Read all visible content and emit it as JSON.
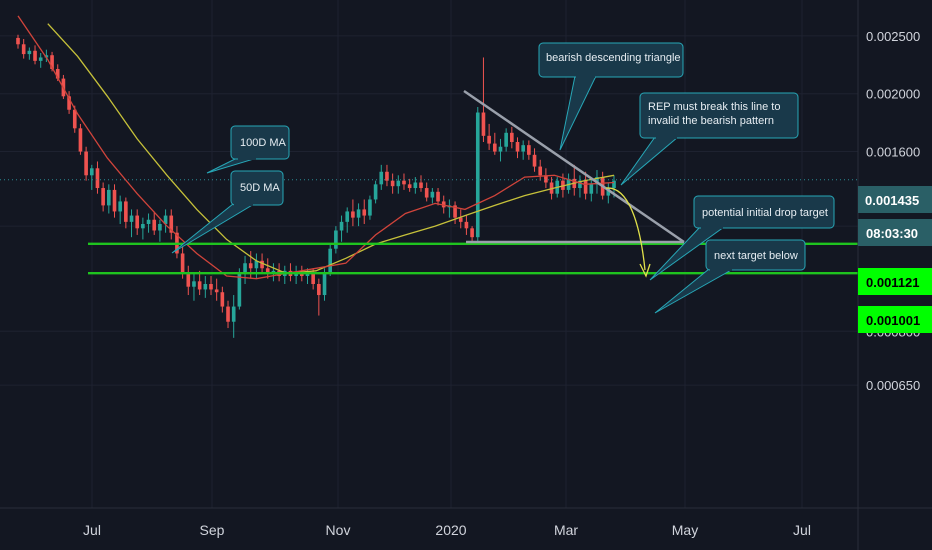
{
  "chart_data": {
    "type": "candlestick",
    "colors": {
      "background": "#131722",
      "grid": "#1e2230",
      "up": "#26a69a",
      "down": "#ef5350",
      "ma100": "#c6c13a",
      "ma50": "#d0443b",
      "level": "#1fc41f",
      "trendline": "#9aa0ab",
      "callout_fill": "#19394a",
      "callout_stroke": "#27a7b7",
      "projection": "#e0e04a",
      "current_badge": "#2a5f66"
    },
    "y_axis": {
      "ticks": [
        "0.002500",
        "0.002000",
        "0.001600",
        "0.001200",
        "0.000800",
        "0.000650"
      ],
      "range": [
        0.0006,
        0.0026
      ],
      "scale": "log"
    },
    "x_axis": {
      "ticks": [
        "Jul",
        "Sep",
        "Nov",
        "2020",
        "Mar",
        "May",
        "Jul"
      ]
    },
    "current_price": "0.001435",
    "countdown": "08:03:30",
    "levels": [
      {
        "value": 0.001121,
        "label": "0.001121"
      },
      {
        "value": 0.001001,
        "label": "0.001001"
      }
    ],
    "candles": [
      [
        0.00248,
        0.00251,
        0.00238,
        0.00242
      ],
      [
        0.00242,
        0.00247,
        0.00229,
        0.00233
      ],
      [
        0.00233,
        0.00239,
        0.00228,
        0.00236
      ],
      [
        0.00236,
        0.00241,
        0.00224,
        0.00227
      ],
      [
        0.00227,
        0.00234,
        0.00221,
        0.0023
      ],
      [
        0.0023,
        0.00237,
        0.00226,
        0.00232
      ],
      [
        0.00232,
        0.00235,
        0.00218,
        0.0022
      ],
      [
        0.0022,
        0.00224,
        0.0021,
        0.00212
      ],
      [
        0.00212,
        0.00215,
        0.00196,
        0.00198
      ],
      [
        0.00198,
        0.00202,
        0.00185,
        0.00188
      ],
      [
        0.00188,
        0.00191,
        0.00172,
        0.00175
      ],
      [
        0.00175,
        0.00178,
        0.00158,
        0.0016
      ],
      [
        0.0016,
        0.00163,
        0.00143,
        0.00146
      ],
      [
        0.00146,
        0.00152,
        0.00138,
        0.0015
      ],
      [
        0.0015,
        0.00154,
        0.00136,
        0.00139
      ],
      [
        0.00139,
        0.00142,
        0.00127,
        0.0013
      ],
      [
        0.0013,
        0.00141,
        0.00126,
        0.00138
      ],
      [
        0.00138,
        0.00141,
        0.00124,
        0.00127
      ],
      [
        0.00127,
        0.00135,
        0.00121,
        0.00132
      ],
      [
        0.00132,
        0.00134,
        0.00119,
        0.00122
      ],
      [
        0.00122,
        0.00128,
        0.00115,
        0.00125
      ],
      [
        0.00125,
        0.00128,
        0.00116,
        0.00119
      ],
      [
        0.00119,
        0.00124,
        0.00114,
        0.00121
      ],
      [
        0.00121,
        0.00126,
        0.00117,
        0.00123
      ],
      [
        0.00123,
        0.00127,
        0.00116,
        0.00118
      ],
      [
        0.00118,
        0.00123,
        0.00113,
        0.00121
      ],
      [
        0.00121,
        0.00128,
        0.00117,
        0.00125
      ],
      [
        0.00125,
        0.00128,
        0.00114,
        0.00117
      ],
      [
        0.00117,
        0.0012,
        0.00106,
        0.00108
      ],
      [
        0.00108,
        0.00112,
        0.00098,
        0.001
      ],
      [
        0.001,
        0.00103,
        0.00092,
        0.00095
      ],
      [
        0.00095,
        0.001,
        0.0009,
        0.00097
      ],
      [
        0.00097,
        0.00101,
        0.00092,
        0.00094
      ],
      [
        0.00094,
        0.00099,
        0.00091,
        0.00096
      ],
      [
        0.00096,
        0.00099,
        0.00092,
        0.00094
      ],
      [
        0.00094,
        0.00098,
        0.0009,
        0.00093
      ],
      [
        0.00093,
        0.00095,
        0.00086,
        0.00088
      ],
      [
        0.00088,
        0.0009,
        0.00081,
        0.00083
      ],
      [
        0.00083,
        0.00092,
        0.00078,
        0.00088
      ],
      [
        0.00088,
        0.00102,
        0.00087,
        0.001
      ],
      [
        0.001,
        0.00107,
        0.00096,
        0.00104
      ],
      [
        0.00104,
        0.00109,
        0.00098,
        0.00102
      ],
      [
        0.00102,
        0.00108,
        0.00098,
        0.00105
      ],
      [
        0.00105,
        0.00108,
        0.001,
        0.00102
      ],
      [
        0.00102,
        0.00106,
        0.00098,
        0.001
      ],
      [
        0.001,
        0.00104,
        0.00097,
        0.00101
      ],
      [
        0.00101,
        0.00104,
        0.00097,
        0.00099
      ],
      [
        0.00099,
        0.00103,
        0.00096,
        0.00101
      ],
      [
        0.00101,
        0.00104,
        0.00097,
        0.00099
      ],
      [
        0.00099,
        0.00103,
        0.00096,
        0.001
      ],
      [
        0.001,
        0.00103,
        0.00097,
        0.00099
      ],
      [
        0.00099,
        0.00102,
        0.00096,
        0.001
      ],
      [
        0.001,
        0.00102,
        0.00094,
        0.00096
      ],
      [
        0.00096,
        0.00098,
        0.00085,
        0.00092
      ],
      [
        0.00092,
        0.00102,
        0.0009,
        0.001
      ],
      [
        0.001,
        0.00112,
        0.00099,
        0.0011
      ],
      [
        0.0011,
        0.0012,
        0.00108,
        0.00118
      ],
      [
        0.00118,
        0.00125,
        0.00113,
        0.00122
      ],
      [
        0.00122,
        0.00129,
        0.00117,
        0.00127
      ],
      [
        0.00127,
        0.00133,
        0.0012,
        0.00124
      ],
      [
        0.00124,
        0.00131,
        0.0012,
        0.00128
      ],
      [
        0.00128,
        0.00133,
        0.00121,
        0.00125
      ],
      [
        0.00125,
        0.00135,
        0.00123,
        0.00133
      ],
      [
        0.00133,
        0.00143,
        0.00131,
        0.00141
      ],
      [
        0.00141,
        0.00152,
        0.00138,
        0.00148
      ],
      [
        0.00148,
        0.00152,
        0.0014,
        0.00143
      ],
      [
        0.00143,
        0.00147,
        0.00136,
        0.0014
      ],
      [
        0.0014,
        0.00146,
        0.00136,
        0.00143
      ],
      [
        0.00143,
        0.00147,
        0.00138,
        0.00141
      ],
      [
        0.00141,
        0.00144,
        0.00137,
        0.00139
      ],
      [
        0.00139,
        0.00145,
        0.00136,
        0.00142
      ],
      [
        0.00142,
        0.00146,
        0.00137,
        0.00139
      ],
      [
        0.00139,
        0.00142,
        0.00132,
        0.00134
      ],
      [
        0.00134,
        0.00139,
        0.00131,
        0.00137
      ],
      [
        0.00137,
        0.00139,
        0.0013,
        0.00132
      ],
      [
        0.00132,
        0.00135,
        0.00126,
        0.00129
      ],
      [
        0.00129,
        0.00133,
        0.00124,
        0.0013
      ],
      [
        0.0013,
        0.00132,
        0.00121,
        0.00124
      ],
      [
        0.00124,
        0.00128,
        0.00119,
        0.00122
      ],
      [
        0.00122,
        0.00125,
        0.00116,
        0.00119
      ],
      [
        0.00119,
        0.0012,
        0.00112,
        0.00115
      ],
      [
        0.00115,
        0.0019,
        0.00113,
        0.00186
      ],
      [
        0.00186,
        0.0023,
        0.00166,
        0.0017
      ],
      [
        0.0017,
        0.00178,
        0.00161,
        0.00165
      ],
      [
        0.00165,
        0.00172,
        0.00158,
        0.0016
      ],
      [
        0.0016,
        0.00168,
        0.00154,
        0.00163
      ],
      [
        0.00163,
        0.00175,
        0.0016,
        0.00172
      ],
      [
        0.00172,
        0.00176,
        0.00162,
        0.00166
      ],
      [
        0.00166,
        0.00169,
        0.00156,
        0.0016
      ],
      [
        0.0016,
        0.00167,
        0.00155,
        0.00164
      ],
      [
        0.00164,
        0.00167,
        0.00155,
        0.00158
      ],
      [
        0.00158,
        0.00162,
        0.00148,
        0.00151
      ],
      [
        0.00151,
        0.00155,
        0.00143,
        0.00146
      ],
      [
        0.00146,
        0.0015,
        0.00139,
        0.00142
      ],
      [
        0.00142,
        0.00145,
        0.00133,
        0.00136
      ],
      [
        0.00136,
        0.00145,
        0.00134,
        0.00143
      ],
      [
        0.00143,
        0.00147,
        0.00134,
        0.00138
      ],
      [
        0.00138,
        0.00147,
        0.00136,
        0.00144
      ],
      [
        0.00144,
        0.00152,
        0.00135,
        0.00139
      ],
      [
        0.00139,
        0.00146,
        0.00134,
        0.00143
      ],
      [
        0.00143,
        0.00148,
        0.00133,
        0.00136
      ],
      [
        0.00136,
        0.00144,
        0.00132,
        0.00141
      ],
      [
        0.00141,
        0.00149,
        0.00136,
        0.00145
      ],
      [
        0.00145,
        0.00148,
        0.00133,
        0.00135
      ],
      [
        0.00135,
        0.00142,
        0.00131,
        0.00139
      ],
      [
        0.00139,
        0.00146,
        0.00134,
        0.00143
      ]
    ],
    "ma100": [
      [
        0.05,
        0.00262
      ],
      [
        0.1,
        0.00231
      ],
      [
        0.15,
        0.00198
      ],
      [
        0.2,
        0.00168
      ],
      [
        0.25,
        0.00146
      ],
      [
        0.3,
        0.00128
      ],
      [
        0.35,
        0.00114
      ],
      [
        0.4,
        0.00105
      ],
      [
        0.45,
        0.001
      ],
      [
        0.5,
        0.00101
      ],
      [
        0.55,
        0.00106
      ],
      [
        0.6,
        0.00112
      ],
      [
        0.65,
        0.00116
      ],
      [
        0.7,
        0.0012
      ],
      [
        0.75,
        0.00125
      ],
      [
        0.8,
        0.0013
      ],
      [
        0.85,
        0.00135
      ],
      [
        0.9,
        0.00139
      ],
      [
        0.95,
        0.00143
      ],
      [
        1.0,
        0.00146
      ]
    ],
    "ma50": [
      [
        0.0,
        0.0027
      ],
      [
        0.05,
        0.00228
      ],
      [
        0.1,
        0.00185
      ],
      [
        0.15,
        0.00156
      ],
      [
        0.2,
        0.00136
      ],
      [
        0.25,
        0.0012
      ],
      [
        0.3,
        0.00108
      ],
      [
        0.35,
        0.00099
      ],
      [
        0.4,
        0.00098
      ],
      [
        0.45,
        0.001
      ],
      [
        0.5,
        0.00102
      ],
      [
        0.55,
        0.00104
      ],
      [
        0.6,
        0.00116
      ],
      [
        0.65,
        0.00126
      ],
      [
        0.7,
        0.00131
      ],
      [
        0.75,
        0.00128
      ],
      [
        0.8,
        0.00135
      ],
      [
        0.85,
        0.00145
      ],
      [
        0.9,
        0.00146
      ],
      [
        0.95,
        0.00141
      ],
      [
        1.0,
        0.00142
      ]
    ],
    "annotations": [
      {
        "lines": [
          "bearish descending triangle"
        ]
      },
      {
        "lines": [
          "REP must break this line to",
          "invalid the bearish pattern"
        ]
      },
      {
        "lines": [
          "100D MA"
        ]
      },
      {
        "lines": [
          "50D MA"
        ]
      },
      {
        "lines": [
          "potential initial drop target"
        ]
      },
      {
        "lines": [
          "next target below"
        ]
      }
    ]
  }
}
